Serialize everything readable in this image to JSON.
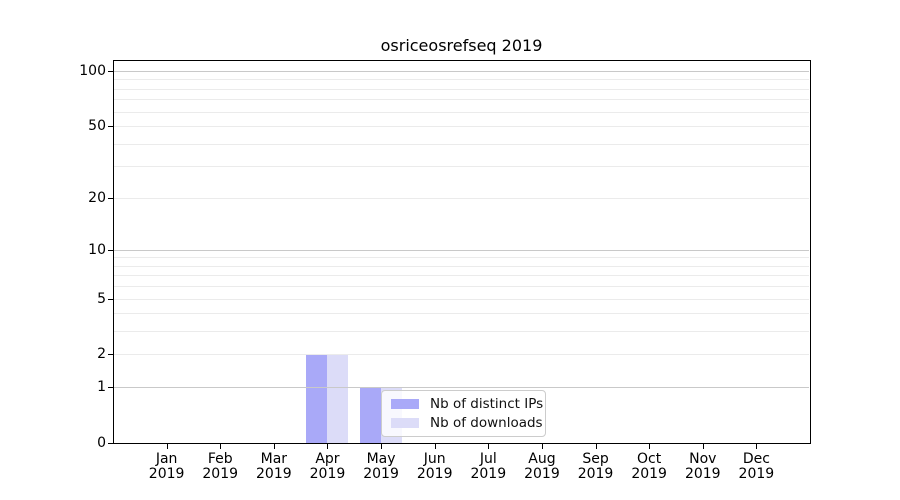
{
  "chart_data": {
    "type": "bar",
    "title": "osriceosrefseq 2019",
    "categories": [
      "Jan",
      "Feb",
      "Mar",
      "Apr",
      "May",
      "Jun",
      "Jul",
      "Aug",
      "Sep",
      "Oct",
      "Nov",
      "Dec"
    ],
    "category_year": "2019",
    "series": [
      {
        "name": "Nb of distinct IPs",
        "color": "#a9a9f8",
        "values": [
          0,
          0,
          0,
          2,
          1,
          0,
          0,
          0,
          0,
          0,
          0,
          0
        ]
      },
      {
        "name": "Nb of downloads",
        "color": "#dcdcf8",
        "values": [
          0,
          0,
          0,
          2,
          1,
          0,
          0,
          0,
          0,
          0,
          0,
          0
        ]
      }
    ],
    "xlabel": "",
    "ylabel": "",
    "y_scale": "log1p",
    "ylim": [
      0,
      114.7
    ],
    "y_ticks": [
      0,
      1,
      2,
      5,
      10,
      20,
      50,
      100
    ],
    "y_major_gridlines": [
      1,
      10,
      100
    ],
    "y_minor_gridlines": [
      2,
      3,
      4,
      5,
      6,
      7,
      8,
      9,
      20,
      30,
      40,
      50,
      60,
      70,
      80,
      90
    ],
    "grid": true,
    "legend": {
      "position": "lower-center",
      "labels": [
        "Nb of distinct IPs",
        "Nb of downloads"
      ]
    }
  },
  "colors": {
    "background": "#ffffff",
    "spine": "#000000",
    "text": "#000000",
    "major_grid": "#c9c9c9",
    "minor_grid": "#ebebeb",
    "legend_border": "#cccccc"
  }
}
